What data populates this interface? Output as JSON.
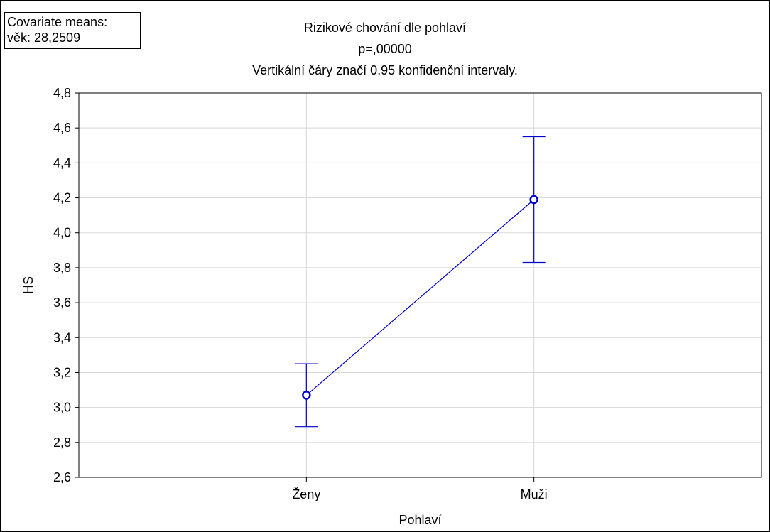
{
  "covariate": {
    "line1": "Covariate means:",
    "line2": "věk: 28,2509"
  },
  "chart_data": {
    "type": "line",
    "title": "Rizikové chování dle pohlaví",
    "subtitle": "p=,00000",
    "subtitle2": "Vertikální čáry značí 0,95 konfidenční intervaly.",
    "xlabel": "Pohlaví",
    "ylabel": "HS",
    "categories": [
      "Ženy",
      "Muži"
    ],
    "values": [
      3.07,
      4.19
    ],
    "ci_lower": [
      2.89,
      3.83
    ],
    "ci_upper": [
      3.25,
      4.55
    ],
    "ylim": [
      2.6,
      4.8
    ],
    "yticks": [
      "2,6",
      "2,8",
      "3,0",
      "3,2",
      "3,4",
      "3,6",
      "3,8",
      "4,0",
      "4,2",
      "4,4",
      "4,6",
      "4,8"
    ],
    "grid": true,
    "series_color": "#0000cc"
  }
}
